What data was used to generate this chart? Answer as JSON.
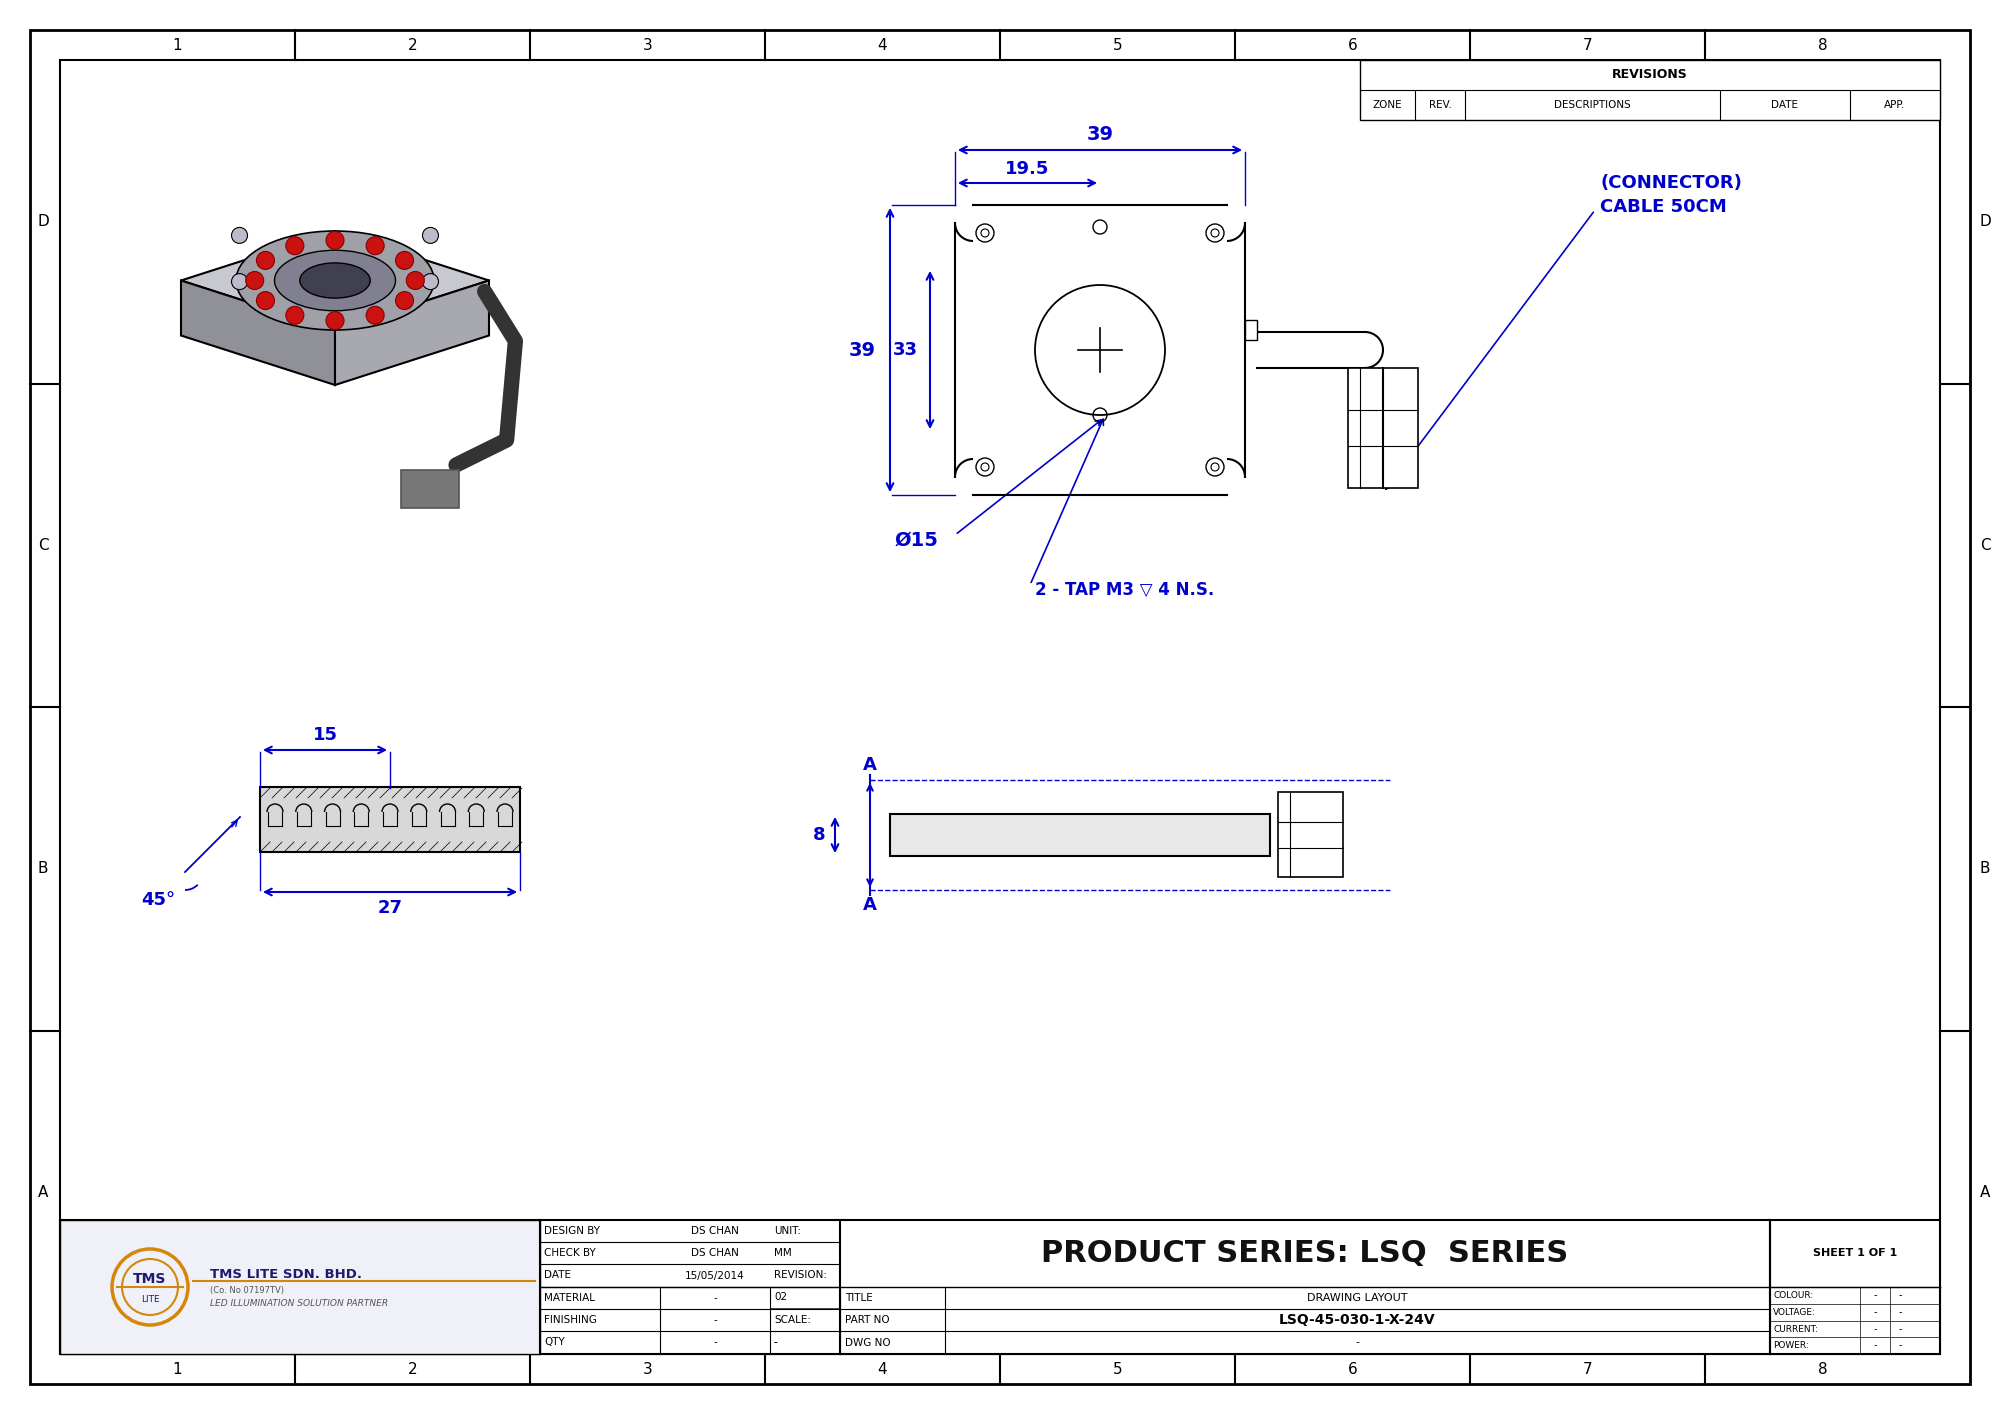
{
  "bg_color": "#ffffff",
  "dim_color": "#0000cc",
  "line_color": "#000000",
  "title_block": {
    "product_series": "PRODUCT SERIES: LSQ  SERIES",
    "design_by": "DS CHAN",
    "check_by": "DS CHAN",
    "date": "15/05/2014",
    "unit": "MM",
    "revision": "02",
    "material": "-",
    "finishing": "-",
    "qty": "-",
    "scale": "-",
    "title_label": "DRAWING LAYOUT",
    "part_no": "LSQ-45-030-1-X-24V",
    "dwg_no": "-",
    "sheet": "SHEET 1 OF 1",
    "colour_val": "-",
    "voltage_val": "-",
    "current_val": "-",
    "power_val": "-"
  },
  "dimensions": {
    "top_width": "39",
    "inner_width": "19.5",
    "left_height": "39",
    "inner_height": "33",
    "diameter": "Ø15",
    "side_width": "15",
    "side_depth": "27",
    "side_height": "8",
    "angle": "45°"
  },
  "annotations": {
    "connector": "(CONNECTOR)\nCABLE 50CM",
    "tap": "2 - TAP M3 ▽ 4 N.S.",
    "section_a": "A"
  },
  "border_numbers": [
    "1",
    "2",
    "3",
    "4",
    "5",
    "6",
    "7",
    "8"
  ],
  "border_letters_top_to_bottom": [
    "D",
    "C",
    "B",
    "A"
  ],
  "revisions_header": "REVISIONS",
  "revisions_cols": [
    "ZONE",
    "REV.",
    "DESCRIPTIONS",
    "DATE",
    "APP."
  ]
}
